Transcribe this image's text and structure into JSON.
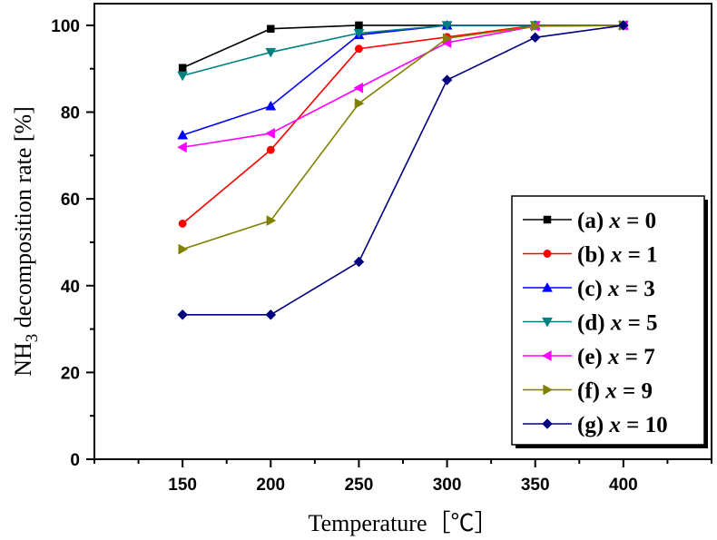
{
  "chart_data": {
    "type": "line",
    "title": "",
    "xlabel": "Temperature［℃］",
    "ylabel_main": "NH",
    "ylabel_sub": "3",
    "ylabel_rest": " decomposition rate [%]",
    "xlim": [
      100,
      450
    ],
    "ylim": [
      0,
      105
    ],
    "x_ticks": [
      150,
      200,
      250,
      300,
      350,
      400
    ],
    "y_ticks": [
      0,
      20,
      40,
      60,
      80,
      100
    ],
    "grid": false,
    "legend_position": "bottom-right",
    "x": [
      150,
      200,
      250,
      300,
      350,
      400
    ],
    "series": [
      {
        "prefix": "(a) ",
        "var": "x",
        "suffix": " = 0",
        "color": "#000000",
        "marker": "square",
        "values": [
          90.2,
          99.2,
          100,
          100,
          100,
          100
        ]
      },
      {
        "prefix": "(b) ",
        "var": "x",
        "suffix": " = 1",
        "color": "#ff0000",
        "marker": "circle",
        "values": [
          54.3,
          71.3,
          94.6,
          97.3,
          100,
          100
        ]
      },
      {
        "prefix": "(c) ",
        "var": "x",
        "suffix": " = 3",
        "color": "#0000ff",
        "marker": "triangle-up",
        "values": [
          74.7,
          81.4,
          97.8,
          100,
          100,
          100
        ]
      },
      {
        "prefix": "(d) ",
        "var": "x",
        "suffix": " = 5",
        "color": "#008080",
        "marker": "triangle-down",
        "values": [
          88.4,
          93.8,
          98.2,
          100,
          100,
          100
        ]
      },
      {
        "prefix": "(e) ",
        "var": "x",
        "suffix": " = 7",
        "color": "#ff00ff",
        "marker": "triangle-left",
        "values": [
          71.9,
          75.1,
          85.6,
          96.0,
          99.8,
          100
        ]
      },
      {
        "prefix": "(f) ",
        "var": "x",
        "suffix": " = 9",
        "color": "#808000",
        "marker": "triangle-right",
        "values": [
          48.4,
          55.0,
          82.0,
          97.0,
          99.8,
          100
        ]
      },
      {
        "prefix": "(g) ",
        "var": "x",
        "suffix": " = 10",
        "color": "#000080",
        "marker": "diamond",
        "values": [
          33.3,
          33.3,
          45.5,
          87.4,
          97.2,
          100
        ]
      }
    ]
  }
}
